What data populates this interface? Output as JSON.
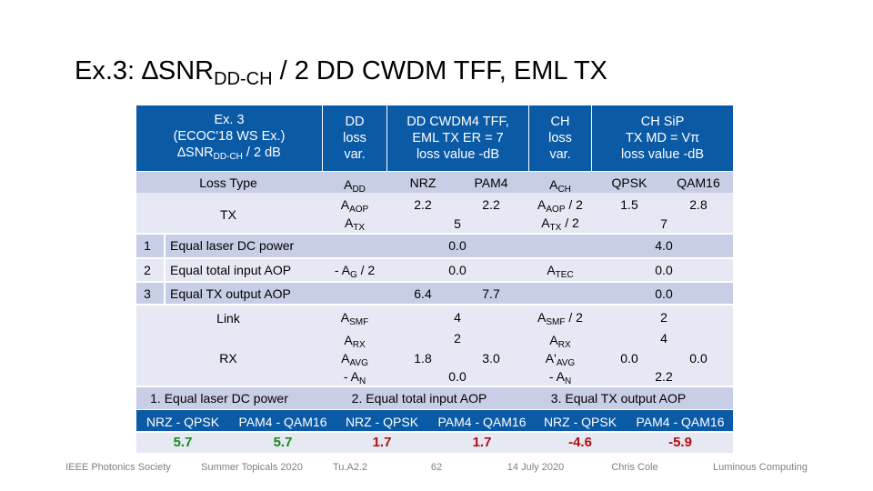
{
  "title": {
    "prefix": "Ex.3: ∆SNR",
    "sub": "DD-CH",
    "suffix": " / 2  DD CWDM TFF, EML TX"
  },
  "header": {
    "c1": {
      "line1": "Ex. 3",
      "line2": "(ECOC'18 WS Ex.)",
      "line3_pre": "∆SNR",
      "line3_sub": "DD-CH",
      "line3_post": " / 2  dB"
    },
    "c2": {
      "line1": "DD",
      "line2": "loss",
      "line3": "var."
    },
    "c3": {
      "line1": "DD CWDM4 TFF,",
      "line2": "EML TX ER = 7",
      "line3": "loss value -dB"
    },
    "c4": {
      "line1": "CH",
      "line2": "loss",
      "line3": "var."
    },
    "c5": {
      "line1": "CH SiP",
      "line2": "TX MD = Vπ",
      "line3": "loss value -dB"
    }
  },
  "rows": {
    "loss_type": "Loss Type",
    "tx": "TX",
    "r1_num": "1",
    "r1_label": "Equal laser DC power",
    "r2_num": "2",
    "r2_label": "Equal total input AOP",
    "r3_num": "3",
    "r3_label": "Equal TX output AOP",
    "link": "Link",
    "rx": "RX"
  },
  "values": {
    "a": "A",
    "dd": "DD",
    "aop": "AOP",
    "tx": "TX",
    "ch": "CH",
    "smf": "SMF",
    "rx": "RX",
    "avg": "AVG",
    "n": "N",
    "g": "G",
    "tec": "TEC",
    "nrz": "NRZ",
    "pam4": "PAM4",
    "qpsk": "QPSK",
    "qam16": "QAM16",
    "v2_2a": "2.2",
    "v2_2b": "2.2",
    "v5": "5",
    "v1_5": "1.5",
    "v2_8": "2.8",
    "v7": "7",
    "half": " / 2",
    "aprime": "A'",
    "minus_a": "- A",
    "minus_ag_pre": "- A",
    "minus_ag_post": " / 2",
    "r1_dd": "0.0",
    "r1_ch": "4.0",
    "r2_dd": "0.0",
    "r2_ch": "0.0",
    "r3_nrz": "6.4",
    "r3_pam4": "7.7",
    "r3_ch": "0.0",
    "link_dd": "4",
    "link_ch": "2",
    "rx_dd": "2",
    "rx_ch": "4",
    "avg_nrz": "1.8",
    "avg_pam4": "3.0",
    "avg_qpsk": "0.0",
    "avg_qam16": "0.0",
    "n_dd": "0.0",
    "n_ch": "2.2"
  },
  "bottom": {
    "case1": "1. Equal laser DC power",
    "case2": "2. Equal total input AOP",
    "case3": "3. Equal TX output AOP",
    "m1": "NRZ - QPSK",
    "m2": "PAM4 - QAM16",
    "m3": "NRZ - QPSK",
    "m4": "PAM4 - QAM16",
    "m5": "NRZ - QPSK",
    "m6": "PAM4 - QAM16",
    "res": [
      "5.7",
      "5.7",
      "1.7",
      "1.7",
      "-4.6",
      "-5.9"
    ]
  },
  "footer": [
    "IEEE Photonics Society",
    "Summer Topicals 2020",
    "Tu.A2.2",
    "62",
    "14 July 2020",
    "Chris Cole",
    "Luminous Computing"
  ]
}
